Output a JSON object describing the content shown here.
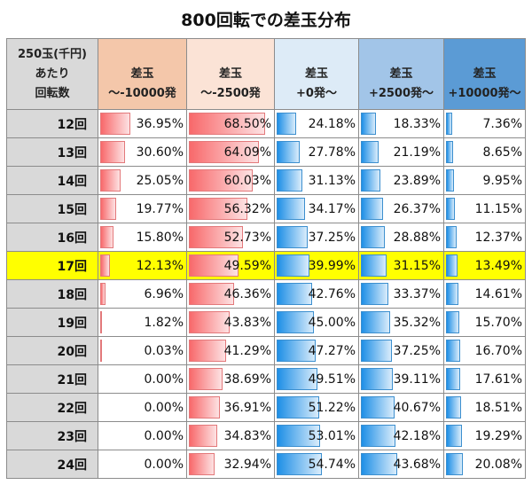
{
  "title": "800回転での差玉分布",
  "header": {
    "row_label": [
      "250玉(千円)",
      "あたり",
      "回転数"
    ],
    "columns": [
      {
        "line1": "差玉",
        "line2": "～-10000発",
        "color": "#f4c7aa",
        "bar": "red"
      },
      {
        "line1": "差玉",
        "line2": "～-2500発",
        "color": "#fbe3d6",
        "bar": "red"
      },
      {
        "line1": "差玉",
        "line2": "+0発～",
        "color": "#ddebf7",
        "bar": "blue"
      },
      {
        "line1": "差玉",
        "line2": "+2500発～",
        "color": "#a2c5e8",
        "bar": "blue"
      },
      {
        "line1": "差玉",
        "line2": "+10000発～",
        "color": "#5b9bd5",
        "bar": "blue"
      }
    ]
  },
  "highlight_color": "#ffff00",
  "rows": [
    {
      "label": "12回",
      "values": [
        "36.95%",
        "68.50%",
        "24.18%",
        "18.33%",
        "7.36%"
      ]
    },
    {
      "label": "13回",
      "values": [
        "30.60%",
        "64.09%",
        "27.78%",
        "21.19%",
        "8.65%"
      ]
    },
    {
      "label": "14回",
      "values": [
        "25.05%",
        "60.03%",
        "31.13%",
        "23.89%",
        "9.95%"
      ]
    },
    {
      "label": "15回",
      "values": [
        "19.77%",
        "56.32%",
        "34.17%",
        "26.37%",
        "11.15%"
      ]
    },
    {
      "label": "16回",
      "values": [
        "15.80%",
        "52.73%",
        "37.25%",
        "28.88%",
        "12.37%"
      ]
    },
    {
      "label": "17回",
      "values": [
        "12.13%",
        "49.59%",
        "39.99%",
        "31.15%",
        "13.49%"
      ],
      "highlight": true
    },
    {
      "label": "18回",
      "values": [
        "6.96%",
        "46.36%",
        "42.76%",
        "33.37%",
        "14.61%"
      ]
    },
    {
      "label": "19回",
      "values": [
        "1.82%",
        "43.83%",
        "45.00%",
        "35.32%",
        "15.70%"
      ]
    },
    {
      "label": "20回",
      "values": [
        "0.03%",
        "41.29%",
        "47.27%",
        "37.25%",
        "16.70%"
      ]
    },
    {
      "label": "21回",
      "values": [
        "0.00%",
        "38.69%",
        "49.51%",
        "39.11%",
        "17.61%"
      ]
    },
    {
      "label": "22回",
      "values": [
        "0.00%",
        "36.91%",
        "51.22%",
        "40.67%",
        "18.51%"
      ]
    },
    {
      "label": "23回",
      "values": [
        "0.00%",
        "34.83%",
        "53.01%",
        "42.18%",
        "19.29%"
      ]
    },
    {
      "label": "24回",
      "values": [
        "0.00%",
        "32.94%",
        "54.74%",
        "43.68%",
        "20.08%"
      ]
    }
  ]
}
